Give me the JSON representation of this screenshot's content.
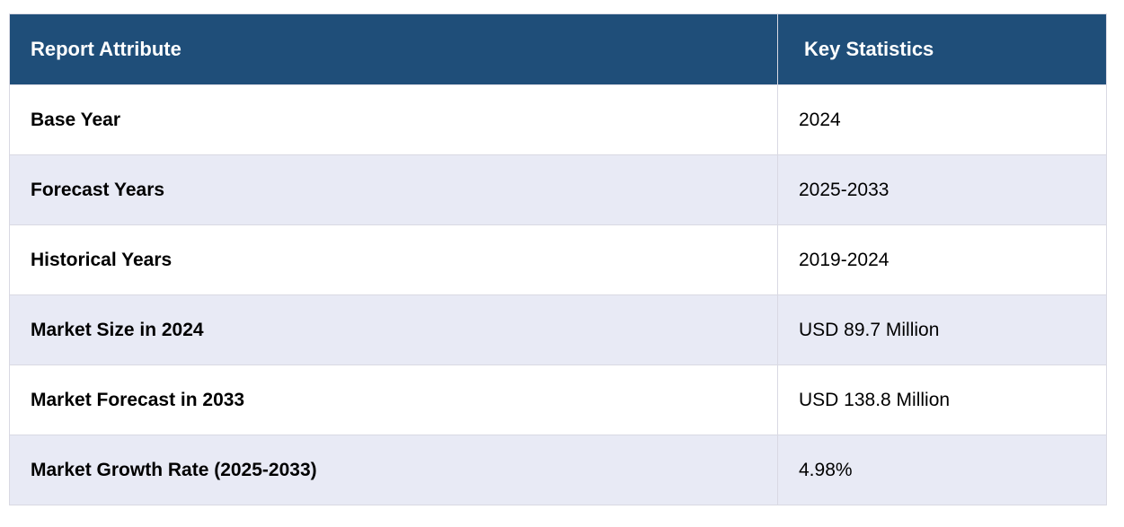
{
  "header": {
    "col1": "Report Attribute",
    "col2": "Key Statistics"
  },
  "rows": [
    {
      "attribute": "Base Year",
      "value": "2024"
    },
    {
      "attribute": "Forecast Years",
      "value": "2025-2033"
    },
    {
      "attribute": "Historical Years",
      "value": "2019-2024"
    },
    {
      "attribute": "Market Size in 2024",
      "value": "USD 89.7 Million"
    },
    {
      "attribute": "Market Forecast in 2033",
      "value": "USD 138.8 Million"
    },
    {
      "attribute": "Market Growth Rate (2025-2033)",
      "value": "4.98%"
    }
  ],
  "colors": {
    "header_bg": "#1f4e79",
    "row_alt_bg": "#e8eaf5"
  }
}
